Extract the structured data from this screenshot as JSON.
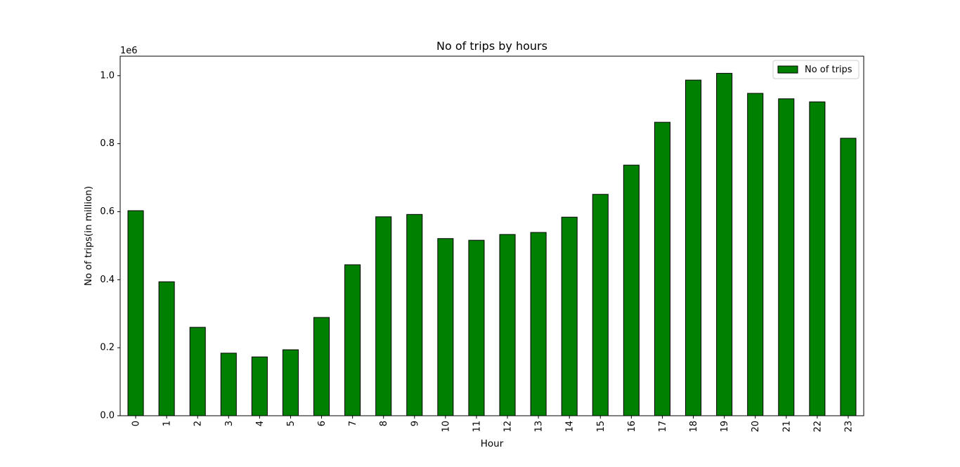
{
  "chart_data": {
    "type": "bar",
    "title": "No of trips by hours",
    "xlabel": "Hour",
    "ylabel": "No of trips(in million)",
    "y_offset_text": "1e6",
    "categories": [
      "0",
      "1",
      "2",
      "3",
      "4",
      "5",
      "6",
      "7",
      "8",
      "9",
      "10",
      "11",
      "12",
      "13",
      "14",
      "15",
      "16",
      "17",
      "18",
      "19",
      "20",
      "21",
      "22",
      "23"
    ],
    "series": [
      {
        "name": "No of trips",
        "values": [
          603000,
          394000,
          260000,
          184000,
          173000,
          194000,
          289000,
          444000,
          585000,
          592000,
          521000,
          516000,
          533000,
          539000,
          584000,
          651000,
          737000,
          863000,
          987000,
          1007000,
          948000,
          932000,
          923000,
          816000
        ],
        "color": "#008000",
        "edge_color": "#000000"
      }
    ],
    "ylim": [
      0,
      1057350
    ],
    "yticks": [
      0.0,
      0.2,
      0.4,
      0.6,
      0.8,
      1.0
    ],
    "ytick_labels": [
      "0.0",
      "0.2",
      "0.4",
      "0.6",
      "0.8",
      "1.0"
    ],
    "legend_position": "top-right",
    "grid": false
  }
}
